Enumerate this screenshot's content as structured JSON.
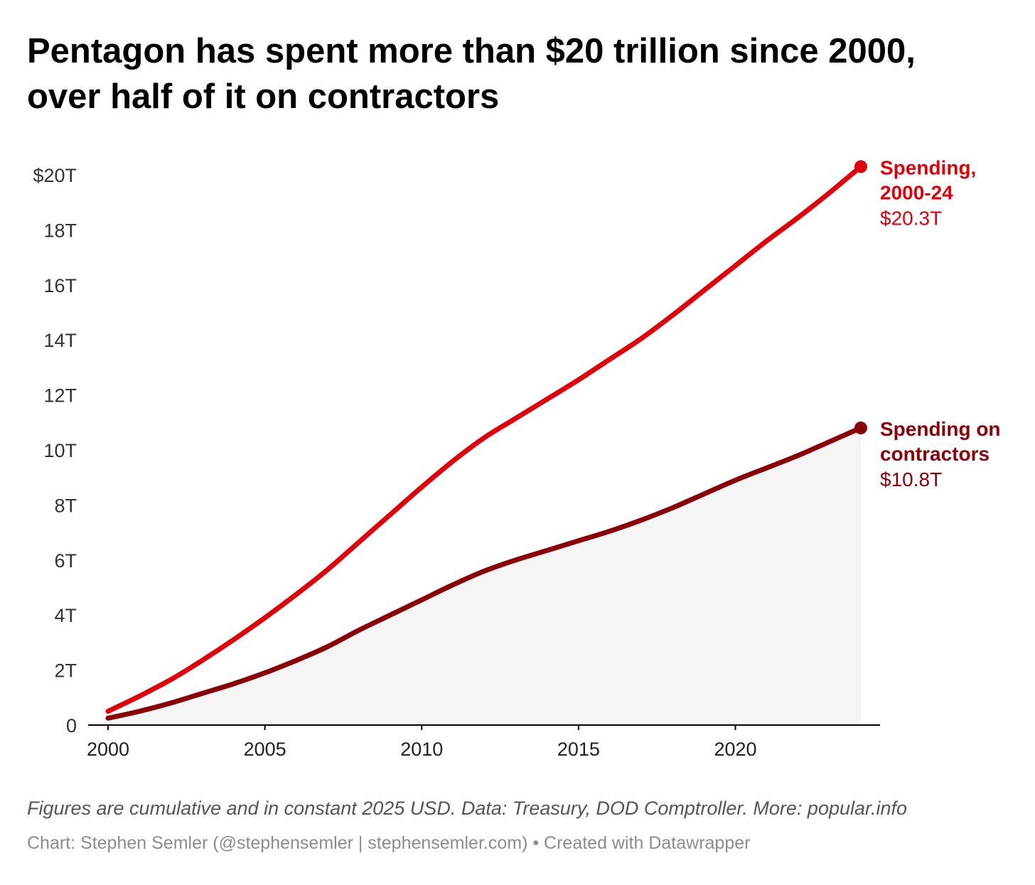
{
  "title_lines": [
    "Pentagon has spent more than $20 trillion since 2000,",
    "over half of it on contractors"
  ],
  "footer": {
    "note": "Figures are cumulative and in constant 2025 USD. Data: Treasury, DOD Comptroller. More: popular.info",
    "credit": "Chart: Stephen Semler (@stephensemler | stephensemler.com) • Created with Datawrapper"
  },
  "colors": {
    "total": "#e0000b",
    "contractors": "#8b0008",
    "area": "#f5f5f5",
    "axis": "#000000",
    "tick_text": "#333333"
  },
  "chart_data": {
    "type": "line",
    "title": "Pentagon has spent more than $20 trillion since 2000, over half of it on contractors",
    "xlabel": "",
    "ylabel": "",
    "xlim": [
      2000,
      2024
    ],
    "ylim": [
      0,
      20
    ],
    "grid": false,
    "legend": "inline labels at line ends",
    "x_ticks": [
      2000,
      2005,
      2010,
      2015,
      2020
    ],
    "x_tick_labels": [
      "2000",
      "2005",
      "2010",
      "2015",
      "2020"
    ],
    "y_ticks": [
      0,
      2,
      4,
      6,
      8,
      10,
      12,
      14,
      16,
      18,
      20
    ],
    "y_tick_labels": [
      "0",
      "2T",
      "4T",
      "6T",
      "8T",
      "10T",
      "12T",
      "14T",
      "16T",
      "18T",
      "$20T"
    ],
    "x": [
      2000,
      2001,
      2002,
      2003,
      2004,
      2005,
      2006,
      2007,
      2008,
      2009,
      2010,
      2011,
      2012,
      2013,
      2014,
      2015,
      2016,
      2017,
      2018,
      2019,
      2020,
      2021,
      2022,
      2023,
      2024
    ],
    "series": [
      {
        "name": "Spending, 2000-24",
        "label_lines": [
          "Spending,",
          "2000-24"
        ],
        "end_label": "$20.3T",
        "values": [
          0.5,
          1.05,
          1.65,
          2.35,
          3.1,
          3.9,
          4.75,
          5.65,
          6.65,
          7.65,
          8.65,
          9.6,
          10.45,
          11.15,
          11.85,
          12.55,
          13.3,
          14.05,
          14.9,
          15.8,
          16.7,
          17.6,
          18.45,
          19.35,
          20.3
        ]
      },
      {
        "name": "Spending on contractors",
        "label_lines": [
          "Spending on",
          "contractors"
        ],
        "end_label": "$10.8T",
        "values": [
          0.25,
          0.5,
          0.8,
          1.15,
          1.5,
          1.9,
          2.35,
          2.85,
          3.45,
          4.0,
          4.55,
          5.1,
          5.6,
          6.0,
          6.35,
          6.7,
          7.05,
          7.45,
          7.9,
          8.4,
          8.9,
          9.35,
          9.8,
          10.3,
          10.8
        ]
      }
    ]
  }
}
